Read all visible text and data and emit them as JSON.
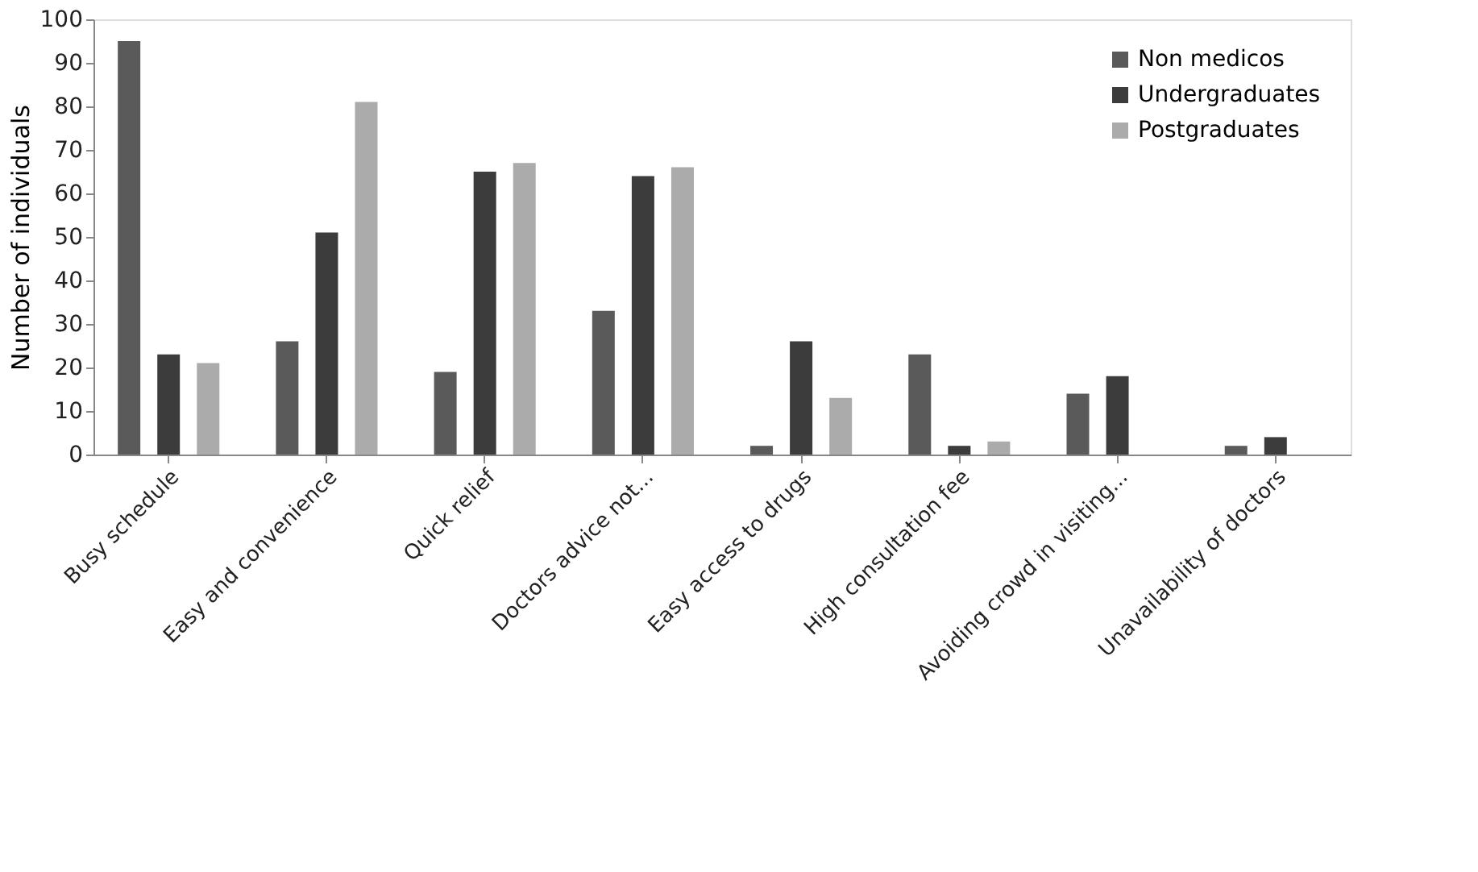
{
  "chart_data": {
    "type": "bar",
    "ylabel": "Number of individuals",
    "categories": [
      "Busy schedule",
      "Easy and convenience",
      "Quick relief",
      "Doctors advice not...",
      "Easy access to drugs",
      "High consultation fee",
      "Avoiding crowd in visiting...",
      "Unavailability of doctors"
    ],
    "series": [
      {
        "name": "Non medicos",
        "color": "#5a5a5a",
        "values": [
          95,
          26,
          19,
          33,
          2,
          23,
          14,
          2
        ]
      },
      {
        "name": "Undergraduates",
        "color": "#3c3c3c",
        "values": [
          23,
          51,
          65,
          64,
          26,
          2,
          18,
          4
        ]
      },
      {
        "name": "Postgraduates",
        "color": "#ababab",
        "values": [
          21,
          81,
          67,
          66,
          13,
          3,
          0,
          0
        ]
      }
    ],
    "ylim": [
      0,
      100
    ],
    "yticks": [
      0,
      10,
      20,
      30,
      40,
      50,
      60,
      70,
      80,
      90,
      100
    ],
    "grid": false,
    "legend": "top right"
  }
}
